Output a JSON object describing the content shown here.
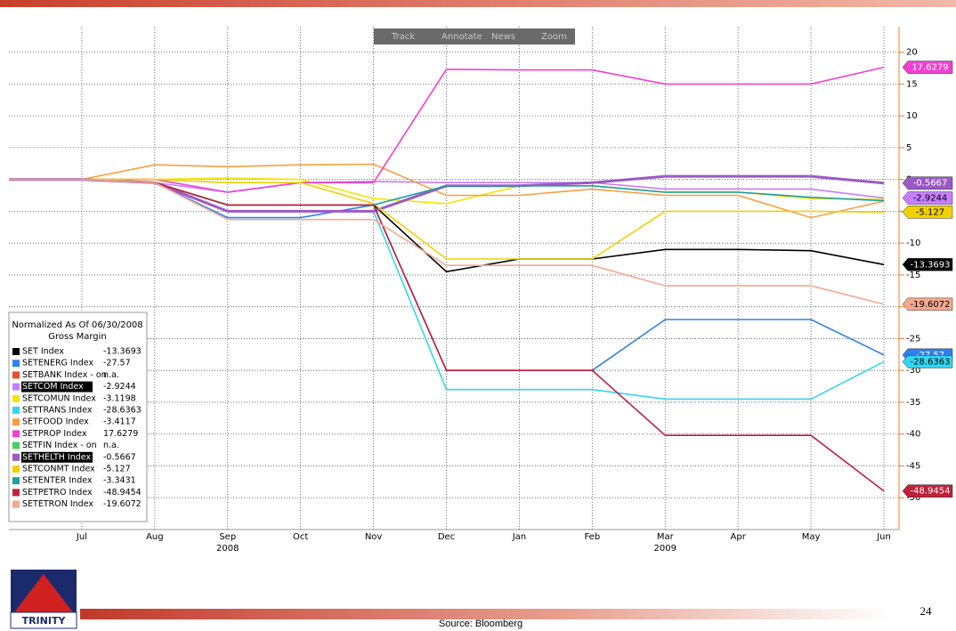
{
  "chart_data": {
    "type": "line",
    "categories": [
      null,
      "Jul",
      "Aug",
      "Sep",
      "Oct",
      "Nov",
      "Dec",
      "Jan",
      "Feb",
      "Mar",
      "Apr",
      "May",
      "Jun"
    ],
    "year_labels": [
      null,
      null,
      null,
      "2008",
      null,
      null,
      null,
      null,
      null,
      "2009",
      null,
      null,
      null
    ],
    "ylim": [
      -55,
      24
    ],
    "yticks": [
      20,
      15,
      10,
      5,
      0,
      -5,
      -10,
      -15,
      -20,
      -25,
      -30,
      -35,
      -40,
      -45,
      -50
    ],
    "grid": true,
    "legend_title": "Normalized As Of 06/30/2008",
    "legend_subtitle": "Gross Margin",
    "legend_position": "lower left",
    "series": [
      {
        "name": "SET Index",
        "legend_value": "-13.3693",
        "color": "#000000",
        "tagged": true,
        "values": [
          0,
          0,
          -0.5,
          -4,
          -4,
          -4,
          -14.5,
          -12.5,
          -12.5,
          -11,
          -11,
          -11.2,
          -13.3693
        ]
      },
      {
        "name": "SETENERG Index",
        "legend_value": "-27.57",
        "color": "#2f80ed",
        "tagged": true,
        "values": [
          0,
          0,
          -0.5,
          -6,
          -6,
          -4,
          -30,
          -30,
          -30,
          -22,
          -22,
          -22,
          -27.57
        ]
      },
      {
        "name": "SETBANK Index - on",
        "legend_value": "n.a.",
        "color": "#e8502a",
        "tagged": false,
        "values": [
          null,
          null,
          null,
          null,
          null,
          null,
          null,
          null,
          null,
          null,
          null,
          null,
          null
        ]
      },
      {
        "name": "SETCOM Index",
        "legend_value": "-2.9244",
        "color": "#c77dff",
        "highlight": true,
        "tagged": true,
        "values": [
          0,
          0,
          -0.5,
          -2,
          -0.5,
          -0.3,
          -0.5,
          -0.5,
          -0.5,
          -1.5,
          -1.5,
          -1.5,
          -2.9244
        ]
      },
      {
        "name": "SETCOMUN Index",
        "legend_value": "-3.1198",
        "color": "#f5e400",
        "tagged": false,
        "values": [
          0,
          0,
          0,
          0.2,
          0,
          -3,
          -3.8,
          -1,
          -1,
          -2,
          -2,
          -3,
          -3.1198
        ]
      },
      {
        "name": "SETTRANS Index",
        "legend_value": "-28.6363",
        "color": "#33d6f0",
        "tagged": true,
        "values": [
          0,
          0,
          -0.5,
          -5,
          -5,
          -5,
          -33,
          -33,
          -33,
          -34.5,
          -34.5,
          -34.5,
          -28.6363
        ]
      },
      {
        "name": "SETFOOD Index",
        "legend_value": "-3.4117",
        "color": "#f5a040",
        "tagged": false,
        "values": [
          0,
          0,
          2.3,
          2,
          2.3,
          2.4,
          -2.5,
          -2.5,
          -1.5,
          -2.5,
          -2.5,
          -6,
          -3.4117
        ]
      },
      {
        "name": "SETPROP Index",
        "legend_value": "17.6279",
        "color": "#f040d0",
        "tagged": true,
        "values": [
          0,
          0,
          0,
          -2,
          -0.5,
          -0.5,
          17.3,
          17.2,
          17.2,
          15,
          15,
          15,
          17.6279
        ]
      },
      {
        "name": "SETFIN Index - on",
        "legend_value": "n.a.",
        "color": "#44d060",
        "tagged": false,
        "values": [
          null,
          null,
          null,
          null,
          null,
          null,
          null,
          null,
          null,
          null,
          null,
          null,
          null
        ]
      },
      {
        "name": "SETHELTH Index",
        "legend_value": "-0.5667",
        "color": "#9b59c6",
        "highlight": true,
        "tagged": true,
        "values": [
          0,
          0,
          -0.5,
          -5,
          -5,
          -5,
          -1,
          -1,
          -0.5,
          0.5,
          0.5,
          0.5,
          -0.5667
        ]
      },
      {
        "name": "SETCONMT Index",
        "legend_value": "-5.127",
        "color": "#f0d000",
        "tagged": true,
        "values": [
          0,
          0,
          0,
          -0.5,
          -0.5,
          -3.8,
          -12.5,
          -12.5,
          -12.5,
          -5,
          -5,
          -5,
          -5.127
        ]
      },
      {
        "name": "SETENTER Index",
        "legend_value": "-3.3431",
        "color": "#20a0a0",
        "tagged": false,
        "values": [
          0,
          0,
          -0.5,
          -4,
          -4,
          -4,
          -1,
          -1,
          -1,
          -2,
          -2,
          -2.8,
          -3.3431
        ]
      },
      {
        "name": "SETPETRO Index",
        "legend_value": "-48.9454",
        "color": "#c0203a",
        "tagged": true,
        "values": [
          0,
          0,
          -0.5,
          -4,
          -4,
          -4,
          -30,
          -30,
          -30,
          -40.2,
          -40.2,
          -40.2,
          -48.9454
        ]
      },
      {
        "name": "SETETRON Index",
        "legend_value": "-19.6072",
        "color": "#f4a890",
        "tagged": true,
        "values": [
          0,
          0,
          -0.5,
          -6.3,
          -6.3,
          -6.3,
          -13.5,
          -13.5,
          -13.5,
          -16.7,
          -16.7,
          -16.7,
          -19.6072
        ]
      }
    ]
  },
  "toolbar": [
    "Track",
    "Annotate",
    "News",
    "Zoom"
  ],
  "footer": {
    "source": "Source: Bloomberg",
    "page_number": "24",
    "logo": "TRINITY"
  }
}
